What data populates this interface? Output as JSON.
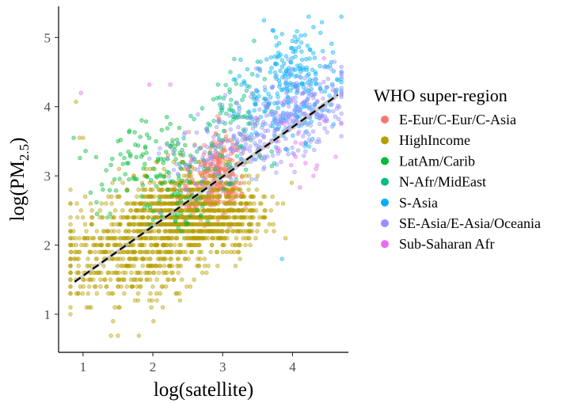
{
  "chart_data": {
    "type": "scatter",
    "title": "",
    "xlabel": "log(satellite)",
    "ylabel_main": "log(PM",
    "ylabel_sub": "2.5",
    "ylabel_close": ")",
    "xlim": [
      0.65,
      4.8
    ],
    "ylim": [
      0.45,
      5.45
    ],
    "xticks": [
      1,
      2,
      3,
      4
    ],
    "yticks": [
      1,
      2,
      3,
      4,
      5
    ],
    "grid": false,
    "legend": {
      "title": "WHO super-region",
      "placement": "right"
    },
    "trend_line": {
      "style": "dashed",
      "color": "#000000",
      "band_color": "#bdbdbd",
      "points": [
        [
          0.88,
          1.47
        ],
        [
          4.65,
          4.17
        ]
      ]
    },
    "series": [
      {
        "name": "E-Eur/C-Eur/C-Asia",
        "color": "#F8766D",
        "clusters": [
          [
            2.95,
            3.05,
            0.18,
            0.3,
            260
          ],
          [
            2.6,
            2.65,
            0.2,
            0.18,
            60
          ]
        ],
        "points": [
          [
            2.9,
            3.6
          ],
          [
            3.0,
            3.5
          ],
          [
            2.85,
            3.45
          ]
        ]
      },
      {
        "name": "HighIncome",
        "color": "#B79F00",
        "clusters": [
          [
            2.5,
            2.45,
            0.42,
            0.28,
            900
          ],
          [
            1.7,
            2.0,
            0.55,
            0.35,
            380
          ],
          [
            3.2,
            2.5,
            0.25,
            0.28,
            160
          ],
          [
            1.1,
            1.7,
            0.25,
            0.4,
            70
          ],
          [
            2.0,
            1.55,
            0.4,
            0.25,
            80
          ]
        ],
        "points": [
          [
            0.9,
            4.07
          ],
          [
            0.95,
            3.55
          ],
          [
            1.0,
            3.55
          ],
          [
            1.4,
            0.69
          ],
          [
            1.5,
            0.69
          ],
          [
            1.8,
            0.69
          ],
          [
            1.05,
            1.1
          ],
          [
            1.25,
            1.4
          ],
          [
            3.6,
            2.5
          ],
          [
            3.9,
            2.1
          ],
          [
            0.85,
            2.1
          ],
          [
            2.6,
            3.45
          ],
          [
            2.4,
            3.3
          ]
        ]
      },
      {
        "name": "LatAm/Carib",
        "color": "#00BA38",
        "clusters": [
          [
            1.95,
            3.15,
            0.4,
            0.3,
            110
          ],
          [
            2.3,
            2.6,
            0.3,
            0.25,
            40
          ]
        ],
        "points": [
          [
            2.2,
            3.85
          ],
          [
            2.25,
            3.75
          ],
          [
            1.5,
            3.5
          ],
          [
            1.2,
            2.45
          ],
          [
            1.35,
            2.4
          ],
          [
            1.45,
            2.95
          ]
        ]
      },
      {
        "name": "N-Afr/MidEast",
        "color": "#00BF7D",
        "clusters": [
          [
            3.2,
            3.85,
            0.25,
            0.3,
            80
          ],
          [
            3.0,
            3.3,
            0.3,
            0.25,
            30
          ]
        ],
        "points": [
          [
            3.45,
            4.95
          ],
          [
            3.5,
            4.65
          ],
          [
            3.1,
            4.25
          ],
          [
            3.6,
            4.4
          ]
        ]
      },
      {
        "name": "S-Asia",
        "color": "#00B0F6",
        "clusters": [
          [
            4.05,
            4.35,
            0.35,
            0.35,
            210
          ],
          [
            3.8,
            3.85,
            0.25,
            0.25,
            50
          ]
        ],
        "points": [
          [
            4.42,
            5.22
          ],
          [
            4.3,
            5.15
          ],
          [
            3.85,
            5.05
          ],
          [
            4.0,
            4.95
          ],
          [
            3.85,
            1.8
          ],
          [
            3.5,
            3.6
          ]
        ]
      },
      {
        "name": "SE-Asia/E-Asia/Oceania",
        "color": "#9590FF",
        "clusters": [
          [
            4.15,
            4.0,
            0.35,
            0.28,
            200
          ],
          [
            3.4,
            3.5,
            0.3,
            0.3,
            110
          ],
          [
            2.6,
            3.2,
            0.3,
            0.25,
            50
          ]
        ],
        "points": [
          [
            1.95,
            3.25
          ],
          [
            2.1,
            3.4
          ],
          [
            2.45,
            3.6
          ],
          [
            4.55,
            4.55
          ],
          [
            4.6,
            4.65
          ]
        ]
      },
      {
        "name": "Sub-Saharan Afr",
        "color": "#E76BF3",
        "clusters": [
          [
            4.05,
            3.6,
            0.3,
            0.3,
            20
          ]
        ],
        "points": [
          [
            0.97,
            4.2
          ],
          [
            1.95,
            4.32
          ],
          [
            2.25,
            4.32
          ],
          [
            4.3,
            3.0
          ],
          [
            4.35,
            3.15
          ],
          [
            3.8,
            3.5
          ],
          [
            4.45,
            4.7
          ],
          [
            2.5,
            3.1
          ]
        ]
      }
    ]
  }
}
